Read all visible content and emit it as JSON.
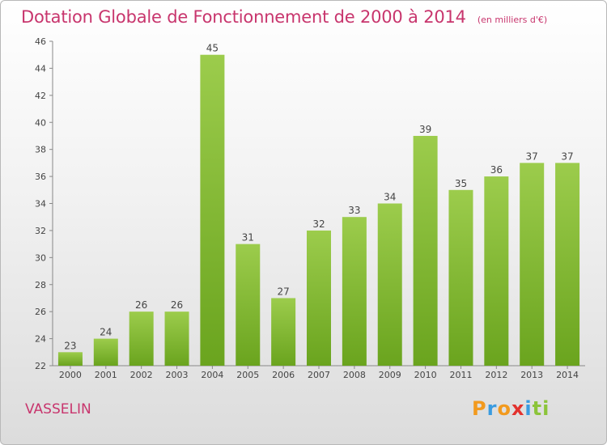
{
  "title": "Dotation Globale de Fonctionnement de 2000 à 2014",
  "subtitle": "(en milliers d'€)",
  "commune": "VASSELIN",
  "logo": {
    "text": "Proxiti",
    "letters": [
      "P",
      "r",
      "o",
      "x",
      "i",
      "ti"
    ]
  },
  "colors": {
    "accent": "#c8356d",
    "bar_top": "#9ccc4c",
    "bar_bottom": "#6aa41e"
  },
  "chart_data": {
    "type": "bar",
    "categories": [
      "2000",
      "2001",
      "2002",
      "2003",
      "2004",
      "2005",
      "2006",
      "2007",
      "2008",
      "2009",
      "2010",
      "2011",
      "2012",
      "2013",
      "2014"
    ],
    "values": [
      23,
      24,
      26,
      26,
      45,
      31,
      27,
      32,
      33,
      34,
      39,
      35,
      36,
      37,
      37
    ],
    "ylim": [
      22,
      46
    ],
    "yticks": [
      22,
      24,
      26,
      28,
      30,
      32,
      34,
      36,
      38,
      40,
      42,
      44,
      46
    ],
    "grid": false,
    "data_labels": true
  }
}
